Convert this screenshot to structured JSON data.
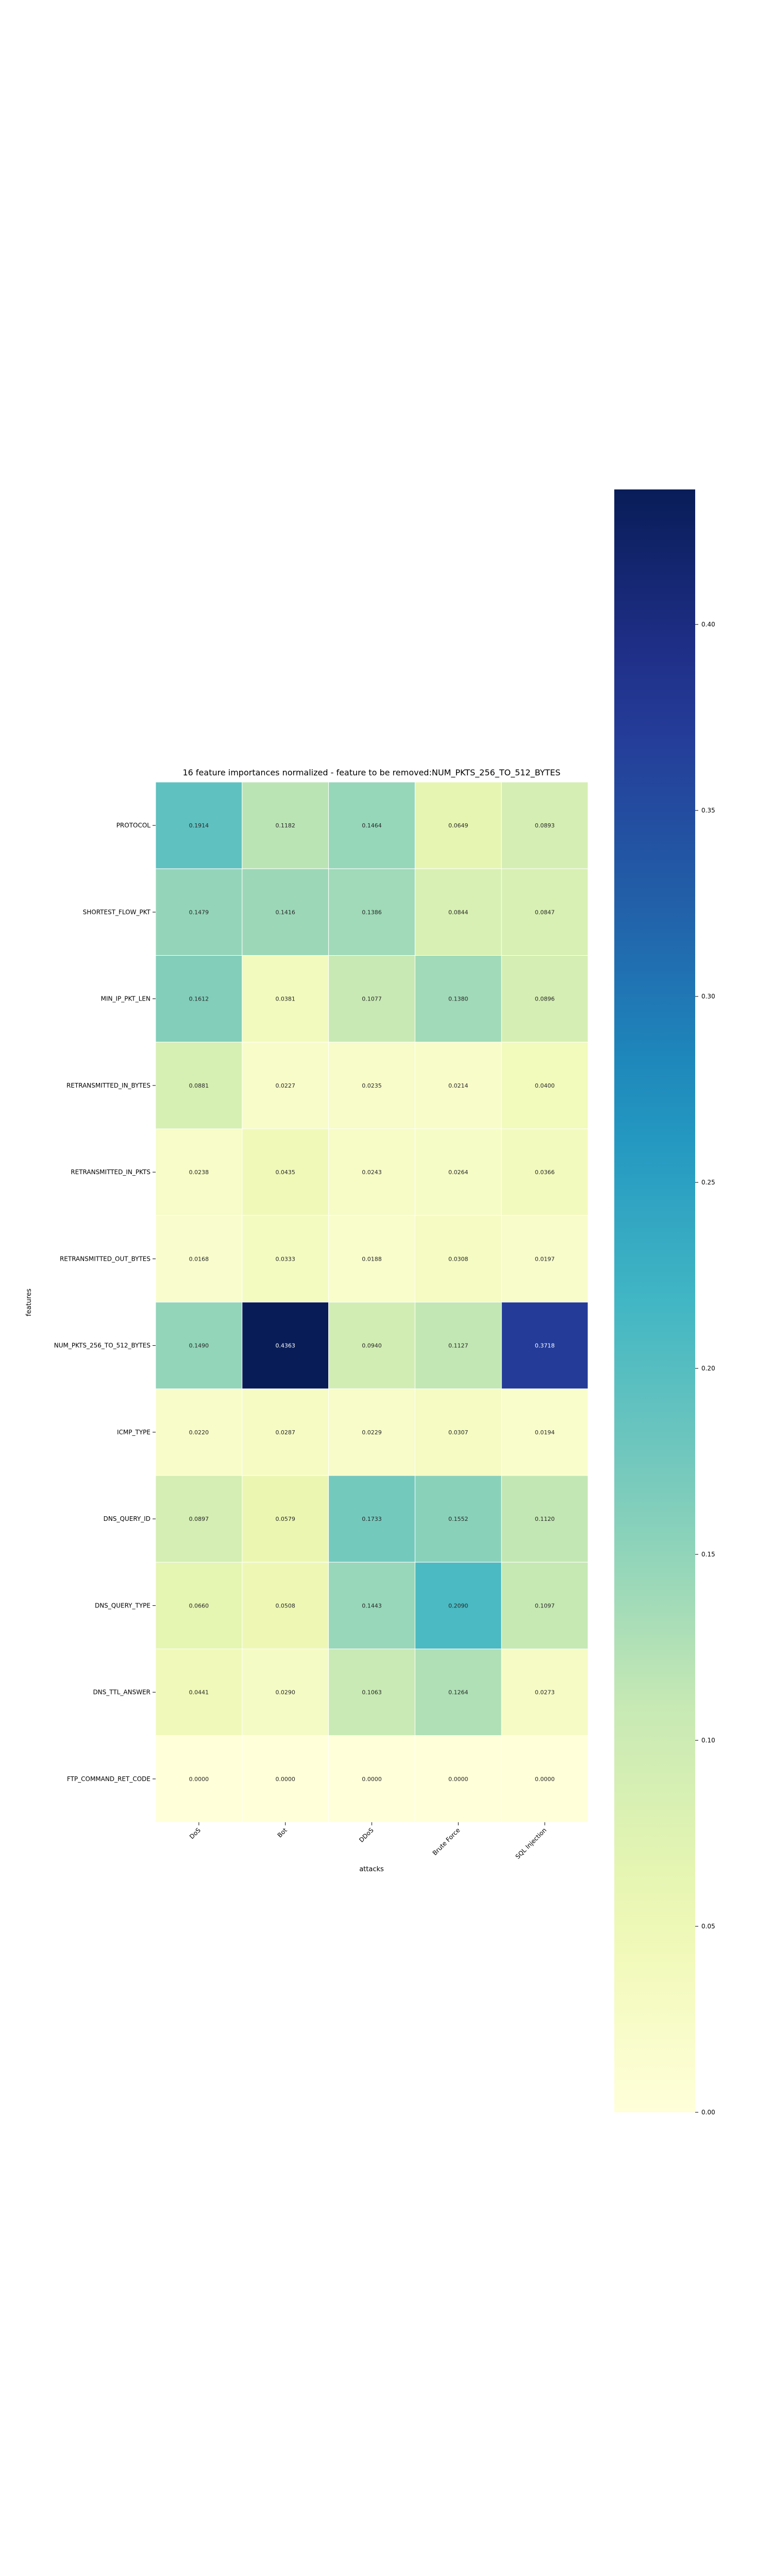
{
  "chart_data": {
    "type": "heatmap",
    "title": "16 feature importances normalized - feature to be removed:NUM_PKTS_256_TO_512_BYTES",
    "xlabel": "attacks",
    "ylabel": "features",
    "columns": [
      "DoS",
      "Bot",
      "DDoS",
      "Brute Force",
      "SQL Injection"
    ],
    "rows": [
      "PROTOCOL",
      "SHORTEST_FLOW_PKT",
      "MIN_IP_PKT_LEN",
      "RETRANSMITTED_IN_BYTES",
      "RETRANSMITTED_IN_PKTS",
      "RETRANSMITTED_OUT_BYTES",
      "NUM_PKTS_256_TO_512_BYTES",
      "ICMP_TYPE",
      "DNS_QUERY_ID",
      "DNS_QUERY_TYPE",
      "DNS_TTL_ANSWER",
      "FTP_COMMAND_RET_CODE"
    ],
    "values": [
      [
        0.1914,
        0.1182,
        0.1464,
        0.0649,
        0.0893
      ],
      [
        0.1479,
        0.1416,
        0.1386,
        0.0844,
        0.0847
      ],
      [
        0.1612,
        0.0381,
        0.1077,
        0.138,
        0.0896
      ],
      [
        0.0881,
        0.0227,
        0.0235,
        0.0214,
        0.04
      ],
      [
        0.0238,
        0.0435,
        0.0243,
        0.0264,
        0.0366
      ],
      [
        0.0168,
        0.0333,
        0.0188,
        0.0308,
        0.0197
      ],
      [
        0.149,
        0.4363,
        0.094,
        0.1127,
        0.3718
      ],
      [
        0.022,
        0.0287,
        0.0229,
        0.0307,
        0.0194
      ],
      [
        0.0897,
        0.0579,
        0.1733,
        0.1552,
        0.112
      ],
      [
        0.066,
        0.0508,
        0.1443,
        0.209,
        0.1097
      ],
      [
        0.0441,
        0.029,
        0.1063,
        0.1264,
        0.0273
      ],
      [
        0.0,
        0.0,
        0.0,
        0.0,
        0.0
      ]
    ],
    "colormap": "YlGnBu",
    "colorbar": {
      "range": [
        0,
        0.4363
      ],
      "ticks": [
        0.0,
        0.05,
        0.1,
        0.15,
        0.2,
        0.25,
        0.3,
        0.35,
        0.4
      ],
      "tick_labels": [
        "0.00",
        "0.05",
        "0.10",
        "0.15",
        "0.20",
        "0.25",
        "0.30",
        "0.35",
        "0.40"
      ]
    },
    "annotations": "values shown in each cell with 4 decimals"
  }
}
